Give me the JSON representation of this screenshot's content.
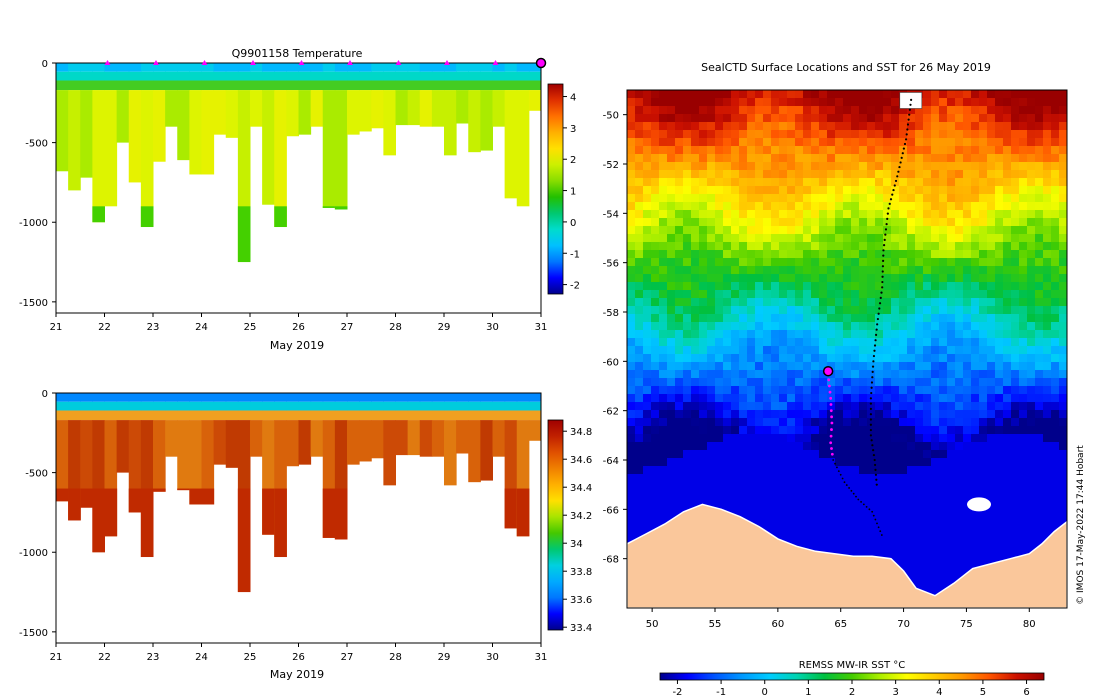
{
  "colors": {
    "profile_fill": [
      "#c6f000",
      "#ddf400",
      "#e6f200",
      "#aaeb00"
    ],
    "salinity_fill": [
      "#e07a10",
      "#d8620a",
      "#cc4a06",
      "#c03a02"
    ],
    "ocean_north": "#ee9a10",
    "antarctic_ocean": "#001a9c",
    "land": "#fac79b",
    "track": "#000000",
    "profile_marker": "#ff00ff"
  },
  "chart_data": [
    {
      "id": "temperature_section",
      "type": "heatmap",
      "title": "Q9901158  Temperature",
      "xlabel": "May 2019",
      "ylabel": "",
      "x_ticks": [
        "21",
        "22",
        "23",
        "24",
        "25",
        "26",
        "27",
        "28",
        "29",
        "30",
        "31"
      ],
      "xlim": [
        21,
        31
      ],
      "y_ticks": [
        "0",
        "-500",
        "-1000",
        "-1500"
      ],
      "ylim": [
        -1570,
        0
      ],
      "colorbar": {
        "ticks": [
          "4",
          "3",
          "2",
          "1",
          "0",
          "-1",
          "-2"
        ],
        "range": [
          -2.3,
          4.4
        ],
        "stops": [
          "#00008b",
          "#0000ff",
          "#0077ff",
          "#00c0ff",
          "#00dccc",
          "#00c870",
          "#22c000",
          "#88dd00",
          "#ccf000",
          "#ffe000",
          "#ffb000",
          "#ff7000",
          "#e03000",
          "#a00000"
        ]
      },
      "marker_days": [
        22,
        23,
        24,
        25,
        26,
        27,
        28,
        29,
        30
      ],
      "current_day": 31
    },
    {
      "id": "salinity_section",
      "type": "heatmap",
      "title": "",
      "xlabel": "May 2019",
      "ylabel": "",
      "x_ticks": [
        "21",
        "22",
        "23",
        "24",
        "25",
        "26",
        "27",
        "28",
        "29",
        "30",
        "31"
      ],
      "xlim": [
        21,
        31
      ],
      "y_ticks": [
        "0",
        "-500",
        "-1000",
        "-1500"
      ],
      "ylim": [
        -1570,
        0
      ],
      "colorbar": {
        "ticks": [
          "34.8",
          "34.6",
          "34.4",
          "34.2",
          "34",
          "33.8",
          "33.6",
          "33.4"
        ],
        "range": [
          33.38,
          34.88
        ],
        "stops": [
          "#00008b",
          "#0000ff",
          "#0077ff",
          "#00aaff",
          "#00d0e0",
          "#00c870",
          "#44c800",
          "#a8e400",
          "#ffe000",
          "#ffb000",
          "#f08000",
          "#e05000",
          "#c02000",
          "#a00000"
        ]
      },
      "profiles": [
        {
          "day": 21.0,
          "depth": 680
        },
        {
          "day": 21.25,
          "depth": 800
        },
        {
          "day": 21.5,
          "depth": 720
        },
        {
          "day": 21.75,
          "depth": 1000
        },
        {
          "day": 22.0,
          "depth": 900
        },
        {
          "day": 22.25,
          "depth": 500
        },
        {
          "day": 22.5,
          "depth": 750
        },
        {
          "day": 22.75,
          "depth": 1030
        },
        {
          "day": 23.0,
          "depth": 620
        },
        {
          "day": 23.25,
          "depth": 400
        },
        {
          "day": 23.5,
          "depth": 610
        },
        {
          "day": 23.75,
          "depth": 700
        },
        {
          "day": 24.0,
          "depth": 700
        },
        {
          "day": 24.25,
          "depth": 450
        },
        {
          "day": 24.5,
          "depth": 470
        },
        {
          "day": 24.75,
          "depth": 1250
        },
        {
          "day": 25.0,
          "depth": 400
        },
        {
          "day": 25.25,
          "depth": 890
        },
        {
          "day": 25.5,
          "depth": 1030
        },
        {
          "day": 25.75,
          "depth": 460
        },
        {
          "day": 26.0,
          "depth": 450
        },
        {
          "day": 26.25,
          "depth": 400
        },
        {
          "day": 26.5,
          "depth": 910
        },
        {
          "day": 26.75,
          "depth": 920
        },
        {
          "day": 27.0,
          "depth": 450
        },
        {
          "day": 27.25,
          "depth": 430
        },
        {
          "day": 27.5,
          "depth": 410
        },
        {
          "day": 27.75,
          "depth": 580
        },
        {
          "day": 28.0,
          "depth": 390
        },
        {
          "day": 28.25,
          "depth": 390
        },
        {
          "day": 28.5,
          "depth": 400
        },
        {
          "day": 28.75,
          "depth": 400
        },
        {
          "day": 29.0,
          "depth": 580
        },
        {
          "day": 29.25,
          "depth": 380
        },
        {
          "day": 29.5,
          "depth": 560
        },
        {
          "day": 29.75,
          "depth": 550
        },
        {
          "day": 30.0,
          "depth": 400
        },
        {
          "day": 30.25,
          "depth": 850
        },
        {
          "day": 30.5,
          "depth": 900
        },
        {
          "day": 30.75,
          "depth": 300
        }
      ]
    },
    {
      "id": "sst_map",
      "type": "heatmap",
      "title": "SealCTD Surface Locations and SST for 26 May 2019",
      "xlabel": "",
      "ylabel": "",
      "x_ticks": [
        "50",
        "55",
        "60",
        "65",
        "70",
        "75",
        "80"
      ],
      "xlim": [
        48,
        83
      ],
      "y_ticks": [
        "-50",
        "-52",
        "-54",
        "-56",
        "-58",
        "-60",
        "-62",
        "-64",
        "-66",
        "-68"
      ],
      "ylim": [
        -70,
        -49
      ],
      "colorbar": {
        "label": "REMSS MW-IR SST °C",
        "ticks": [
          "-2",
          "-1",
          "0",
          "1",
          "2",
          "3",
          "4",
          "5",
          "6"
        ],
        "range": [
          -2.4,
          6.4
        ],
        "stops": [
          "#00008b",
          "#0000ff",
          "#0055ff",
          "#0099ff",
          "#00ccff",
          "#00d4b0",
          "#00c040",
          "#44cc00",
          "#aaee00",
          "#ffff00",
          "#ffcc00",
          "#ff9900",
          "#ff5500",
          "#cc1100",
          "#990000"
        ]
      },
      "surface_track": [
        {
          "lon": 70.6,
          "lat": -49.4
        },
        {
          "lon": 70.2,
          "lat": -51.0
        },
        {
          "lon": 69.5,
          "lat": -52.5
        },
        {
          "lon": 68.8,
          "lat": -53.8
        },
        {
          "lon": 68.4,
          "lat": -55.5
        },
        {
          "lon": 68.3,
          "lat": -57.0
        },
        {
          "lon": 67.9,
          "lat": -58.5
        },
        {
          "lon": 67.6,
          "lat": -60.0
        },
        {
          "lon": 67.4,
          "lat": -61.5
        },
        {
          "lon": 67.4,
          "lat": -63.0
        },
        {
          "lon": 67.7,
          "lat": -64.0
        },
        {
          "lon": 67.9,
          "lat": -65.2
        }
      ],
      "recent_track": [
        {
          "lon": 64.0,
          "lat": -60.5
        },
        {
          "lon": 64.2,
          "lat": -61.5
        },
        {
          "lon": 64.3,
          "lat": -62.5
        },
        {
          "lon": 64.2,
          "lat": -63.3
        },
        {
          "lon": 64.4,
          "lat": -64.0
        },
        {
          "lon": 65.3,
          "lat": -64.9
        },
        {
          "lon": 66.4,
          "lat": -65.6
        },
        {
          "lon": 67.5,
          "lat": -66.1
        },
        {
          "lon": 68.4,
          "lat": -67.2
        }
      ],
      "current_position": {
        "lon": 64.0,
        "lat": -60.4
      }
    }
  ],
  "credit": "© IMOS 17-May-2022 17:44 Hobart"
}
